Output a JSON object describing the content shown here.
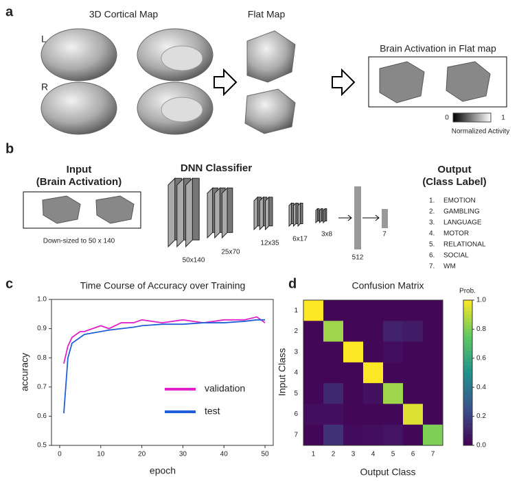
{
  "panels": {
    "a": {
      "letter": "a",
      "cortical_title": "3D Cortical Map",
      "left": "L",
      "right": "R",
      "flat_title": "Flat Map",
      "activation_title": "Brain Activation in Flat map",
      "colorbar": {
        "min": "0",
        "max": "1",
        "label": "Normalized Activity"
      }
    },
    "b": {
      "letter": "b",
      "input_title": [
        "Input",
        "(Brain Activation)"
      ],
      "input_caption": "Down-sized to 50 x 140",
      "dnn_title": "DNN Classifier",
      "layers": [
        "50x140",
        "25x70",
        "12x35",
        "6x17",
        "3x8",
        "512",
        "7"
      ],
      "output_title": [
        "Output",
        "(Class Label)"
      ],
      "classes": [
        {
          "n": "1.",
          "label": "EMOTION"
        },
        {
          "n": "2.",
          "label": "GAMBLING"
        },
        {
          "n": "3.",
          "label": "LANGUAGE"
        },
        {
          "n": "4.",
          "label": "MOTOR"
        },
        {
          "n": "5.",
          "label": "RELATIONAL"
        },
        {
          "n": "6.",
          "label": "SOCIAL"
        },
        {
          "n": "7.",
          "label": "WM"
        }
      ]
    },
    "c": {
      "letter": "c"
    },
    "d": {
      "letter": "d"
    }
  },
  "chart_data": [
    {
      "type": "line",
      "title": "Time Course of Accuracy over Training",
      "x_label": "epoch",
      "y_label": "accuracy",
      "x": [
        1,
        2,
        3,
        4,
        5,
        6,
        8,
        10,
        12,
        15,
        18,
        20,
        25,
        30,
        35,
        40,
        45,
        48,
        50
      ],
      "series": [
        {
          "name": "validation",
          "color": "#e020c8",
          "values": [
            0.78,
            0.84,
            0.87,
            0.88,
            0.89,
            0.89,
            0.9,
            0.91,
            0.9,
            0.92,
            0.92,
            0.93,
            0.92,
            0.93,
            0.92,
            0.93,
            0.93,
            0.94,
            0.92
          ]
        },
        {
          "name": "test",
          "color": "#1f5fd8",
          "values": [
            0.61,
            0.8,
            0.85,
            0.86,
            0.87,
            0.88,
            0.885,
            0.89,
            0.895,
            0.9,
            0.905,
            0.91,
            0.915,
            0.915,
            0.92,
            0.92,
            0.925,
            0.93,
            0.93
          ]
        }
      ],
      "xlim": [
        -2,
        52
      ],
      "ylim": [
        0.5,
        1.0
      ],
      "xticks": [
        0,
        10,
        20,
        30,
        40,
        50
      ],
      "yticks": [
        0.5,
        0.6,
        0.7,
        0.8,
        0.9,
        {
          "value": 1.0,
          "label": "1.0"
        }
      ]
    },
    {
      "type": "heatmap",
      "title": "Confusion Matrix",
      "x_label": "Output Class",
      "y_label": "Input Class",
      "colorbar_label": "Prob.",
      "categories": [
        "1",
        "2",
        "3",
        "4",
        "5",
        "6",
        "7"
      ],
      "values": [
        [
          1,
          0.02,
          0.02,
          0.02,
          0.02,
          0.02,
          0.02
        ],
        [
          0.02,
          0.85,
          0.02,
          0.02,
          0.1,
          0.08,
          0.02
        ],
        [
          0.02,
          0.02,
          1,
          0.02,
          0.04,
          0.02,
          0.02
        ],
        [
          0.02,
          0.02,
          0.02,
          1,
          0.02,
          0.02,
          0.02
        ],
        [
          0.02,
          0.12,
          0.02,
          0.05,
          0.85,
          0.02,
          0.02
        ],
        [
          0.04,
          0.04,
          0.02,
          0.02,
          0.02,
          0.95,
          0.02
        ],
        [
          0.02,
          0.15,
          0.03,
          0.04,
          0.06,
          0.02,
          0.8
        ]
      ],
      "clim": [
        0,
        1
      ],
      "cticks": [
        {
          "value": 0,
          "label": "0.0"
        },
        0.2,
        0.4,
        0.6,
        0.8,
        {
          "value": 1,
          "label": "1.0"
        }
      ],
      "colormap": "viridis"
    }
  ]
}
